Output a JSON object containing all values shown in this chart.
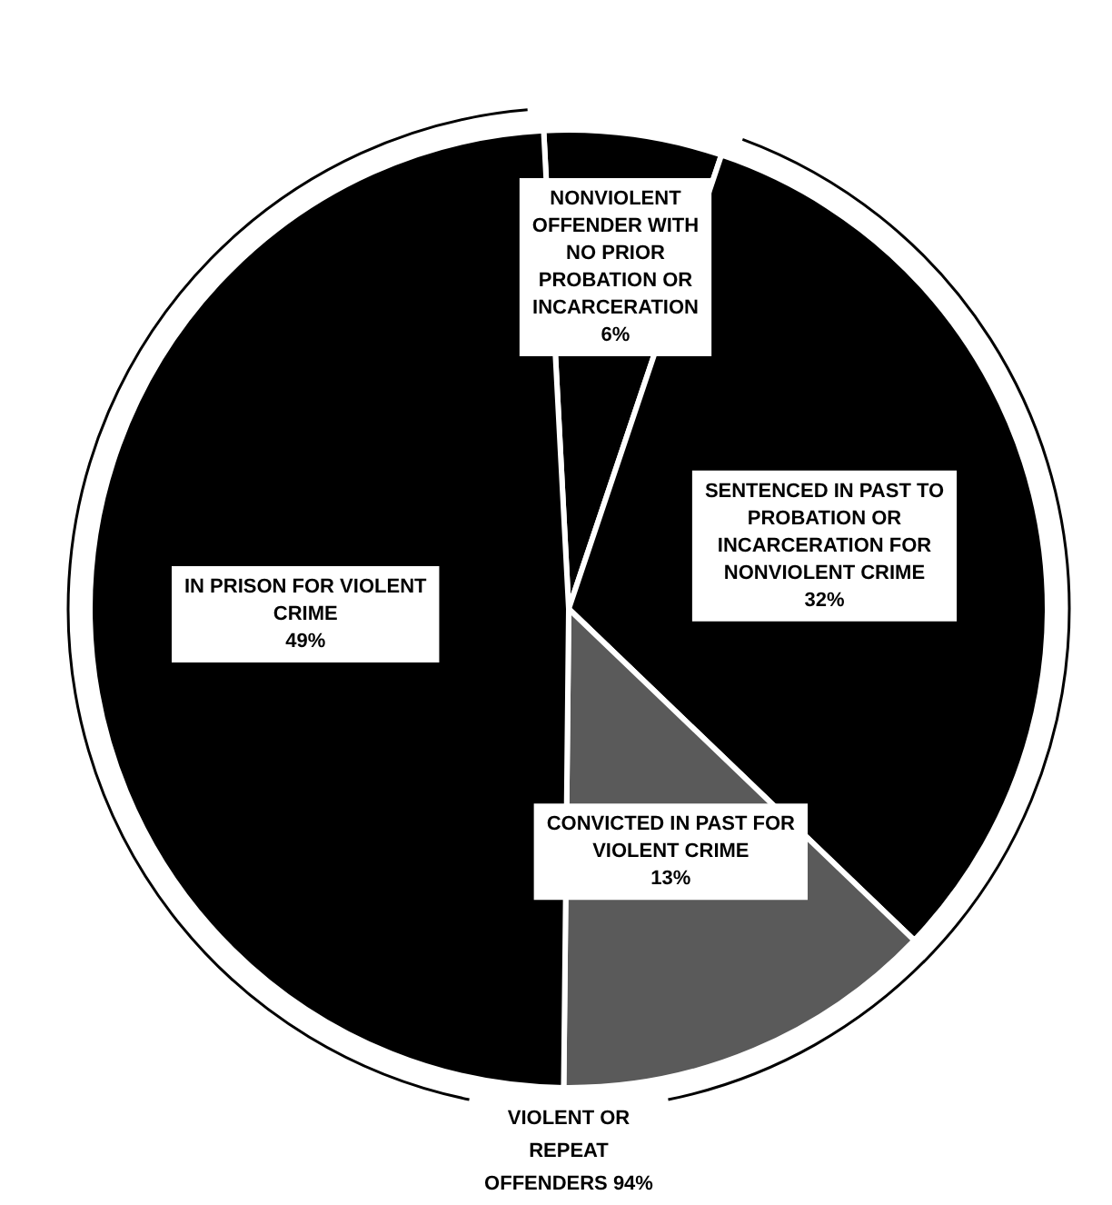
{
  "chart_data": {
    "type": "pie",
    "categories": [
      "NONVIOLENT OFFENDER WITH NO PRIOR PROBATION OR INCARCERATION",
      "SENTENCED IN PAST TO PROBATION OR INCARCERATION FOR NONVIOLENT CRIME",
      "CONVICTED IN PAST FOR VIOLENT CRIME",
      "IN PRISON FOR VIOLENT CRIME"
    ],
    "values": [
      6,
      32,
      13,
      49
    ],
    "value_labels": [
      "6%",
      "32%",
      "13%",
      "49%"
    ],
    "colors": [
      "#000000",
      "#000000",
      "#5a5a5a",
      "#000000"
    ],
    "legend": false,
    "annotations": [
      "VIOLENT OR REPEAT OFFENDERS 94%"
    ]
  }
}
